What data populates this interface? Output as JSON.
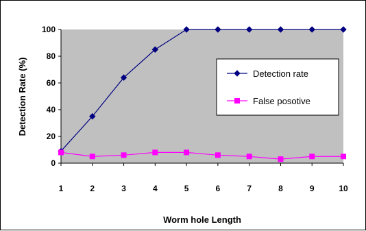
{
  "chart_data": {
    "type": "line",
    "title": "",
    "xlabel": "Worm hole Length",
    "ylabel": "Detection Rate (%)",
    "x": [
      1,
      2,
      3,
      4,
      5,
      6,
      7,
      8,
      9,
      10
    ],
    "x_tick_labels": [
      "1",
      "2",
      "3",
      "4",
      "5",
      "6",
      "7",
      "8",
      "9",
      "10"
    ],
    "y_tick_labels": [
      "0",
      "20",
      "40",
      "60",
      "80",
      "100"
    ],
    "ylim": [
      0,
      100
    ],
    "grid": false,
    "plot_background": "#c0c0c0",
    "legend_position": "right",
    "series": [
      {
        "name": "Detection rate",
        "color": "#000080",
        "marker": "diamond",
        "values": [
          9,
          35,
          64,
          85,
          100,
          100,
          100,
          100,
          100,
          100
        ]
      },
      {
        "name": "False posotive",
        "color": "#ff00ff",
        "marker": "square",
        "values": [
          8,
          5,
          6,
          8,
          8,
          6,
          5,
          3,
          5,
          5
        ]
      }
    ]
  }
}
